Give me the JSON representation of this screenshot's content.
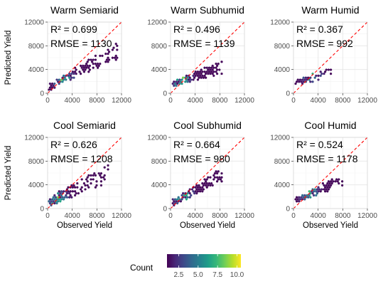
{
  "chart_data": [
    {
      "type": "scatter",
      "subtype": "hexbin",
      "title": "Warm Semiarid",
      "xlabel": "",
      "ylabel": "Predicted Yield",
      "xlim": [
        0,
        12000
      ],
      "ylim": [
        0,
        12000
      ],
      "xticks": [
        0,
        4000,
        8000,
        12000
      ],
      "yticks": [
        0,
        4000,
        8000,
        12000
      ],
      "xtick_labels": [
        "0",
        "4000",
        "8000",
        "12000"
      ],
      "ytick_labels": [
        "0",
        "4000",
        "8000",
        "12000"
      ],
      "grid": true,
      "reference_line": {
        "slope": 1,
        "intercept": 0,
        "style": "dashed",
        "color": "#ff0000"
      },
      "r2_label": "R² = 0.699",
      "rmse_label": "RMSE = 1130",
      "point_cloud": {
        "x_range": [
          200,
          11200
        ],
        "center_slope": 0.55,
        "center_intercept": 1000,
        "spread": 900,
        "n": 140,
        "seed": 11,
        "peak": [
          2500,
          2300
        ]
      }
    },
    {
      "type": "scatter",
      "subtype": "hexbin",
      "title": "Warm Subhumid",
      "xlabel": "",
      "ylabel": "",
      "xlim": [
        0,
        12000
      ],
      "ylim": [
        0,
        12000
      ],
      "xticks": [
        0,
        4000,
        8000,
        12000
      ],
      "yticks": [
        0,
        4000,
        8000,
        12000
      ],
      "xtick_labels": [
        "0",
        "4000",
        "8000",
        "12000"
      ],
      "ytick_labels": [
        "0",
        "4000",
        "8000",
        "12000"
      ],
      "grid": true,
      "reference_line": {
        "slope": 1,
        "intercept": 0,
        "style": "dashed",
        "color": "#ff0000"
      },
      "r2_label": "R² = 0.496",
      "rmse_label": "RMSE = 1139",
      "point_cloud": {
        "x_range": [
          300,
          8200
        ],
        "center_slope": 0.35,
        "center_intercept": 1500,
        "spread": 700,
        "n": 150,
        "seed": 23,
        "peak": [
          1800,
          2200
        ]
      }
    },
    {
      "type": "scatter",
      "subtype": "hexbin",
      "title": "Warm Humid",
      "xlabel": "",
      "ylabel": "",
      "xlim": [
        0,
        12000
      ],
      "ylim": [
        0,
        12000
      ],
      "xticks": [
        0,
        4000,
        8000,
        12000
      ],
      "yticks": [
        0,
        4000,
        8000,
        12000
      ],
      "xtick_labels": [
        "0",
        "4000",
        "8000",
        "12000"
      ],
      "ytick_labels": [
        "0",
        "4000",
        "8000",
        "12000"
      ],
      "grid": true,
      "reference_line": {
        "slope": 1,
        "intercept": 0,
        "style": "dashed",
        "color": "#ff0000"
      },
      "r2_label": "R² = 0.367",
      "rmse_label": "RMSE = 992",
      "point_cloud": {
        "x_range": [
          300,
          6000
        ],
        "center_slope": 0.3,
        "center_intercept": 1700,
        "spread": 600,
        "n": 60,
        "seed": 37,
        "peak": [
          2600,
          3200
        ]
      }
    },
    {
      "type": "scatter",
      "subtype": "hexbin",
      "title": "Cool Semiarid",
      "xlabel": "Observed Yield",
      "ylabel": "Predicted Yield",
      "xlim": [
        0,
        12000
      ],
      "ylim": [
        0,
        12000
      ],
      "xticks": [
        0,
        4000,
        8000,
        12000
      ],
      "yticks": [
        0,
        4000,
        8000,
        12000
      ],
      "xtick_labels": [
        "0",
        "4000",
        "8000",
        "12000"
      ],
      "ytick_labels": [
        "0",
        "4000",
        "8000",
        "12000"
      ],
      "grid": true,
      "reference_line": {
        "slope": 1,
        "intercept": 0,
        "style": "dashed",
        "color": "#ff0000"
      },
      "r2_label": "R² = 0.626",
      "rmse_label": "RMSE = 1208",
      "point_cloud": {
        "x_range": [
          200,
          9500
        ],
        "center_slope": 0.5,
        "center_intercept": 1000,
        "spread": 1100,
        "n": 150,
        "seed": 51,
        "peak": [
          1500,
          1700
        ]
      }
    },
    {
      "type": "scatter",
      "subtype": "hexbin",
      "title": "Cool Subhumid",
      "xlabel": "Observed Yield",
      "ylabel": "",
      "xlim": [
        0,
        12000
      ],
      "ylim": [
        0,
        12000
      ],
      "xticks": [
        0,
        4000,
        8000,
        12000
      ],
      "yticks": [
        0,
        4000,
        8000,
        12000
      ],
      "xtick_labels": [
        "0",
        "4000",
        "8000",
        "12000"
      ],
      "ytick_labels": [
        "0",
        "4000",
        "8000",
        "12000"
      ],
      "grid": true,
      "reference_line": {
        "slope": 1,
        "intercept": 0,
        "style": "dashed",
        "color": "#ff0000"
      },
      "r2_label": "R² = 0.664",
      "rmse_label": "RMSE = 980",
      "point_cloud": {
        "x_range": [
          200,
          8200
        ],
        "center_slope": 0.62,
        "center_intercept": 700,
        "spread": 800,
        "n": 150,
        "seed": 67,
        "peak": [
          2000,
          2000
        ]
      }
    },
    {
      "type": "scatter",
      "subtype": "hexbin",
      "title": "Cool Humid",
      "xlabel": "Observed Yield",
      "ylabel": "",
      "xlim": [
        0,
        12000
      ],
      "ylim": [
        0,
        12000
      ],
      "xticks": [
        0,
        4000,
        8000,
        12000
      ],
      "yticks": [
        0,
        4000,
        8000,
        12000
      ],
      "xtick_labels": [
        "0",
        "4000",
        "8000",
        "12000"
      ],
      "ytick_labels": [
        "0",
        "4000",
        "8000",
        "12000"
      ],
      "grid": true,
      "reference_line": {
        "slope": 1,
        "intercept": 0,
        "style": "dashed",
        "color": "#ff0000"
      },
      "r2_label": "R² = 0.524",
      "rmse_label": "RMSE = 1178",
      "point_cloud": {
        "x_range": [
          300,
          7800
        ],
        "center_slope": 0.45,
        "center_intercept": 1300,
        "spread": 650,
        "n": 120,
        "seed": 83,
        "peak": [
          2400,
          2800
        ]
      }
    }
  ],
  "legend": {
    "title": "Count",
    "position": "bottom",
    "scale": "viridis",
    "range": [
      1,
      10.5
    ],
    "ticks": [
      2.5,
      5.0,
      7.5,
      10.0
    ],
    "tick_labels": [
      "2.5",
      "5.0",
      "7.5",
      "10.0"
    ],
    "colors": [
      "#440154",
      "#482878",
      "#3e4989",
      "#31688e",
      "#26828e",
      "#1f9e89",
      "#35b779",
      "#6ece58",
      "#b5de2b",
      "#fde725"
    ]
  }
}
